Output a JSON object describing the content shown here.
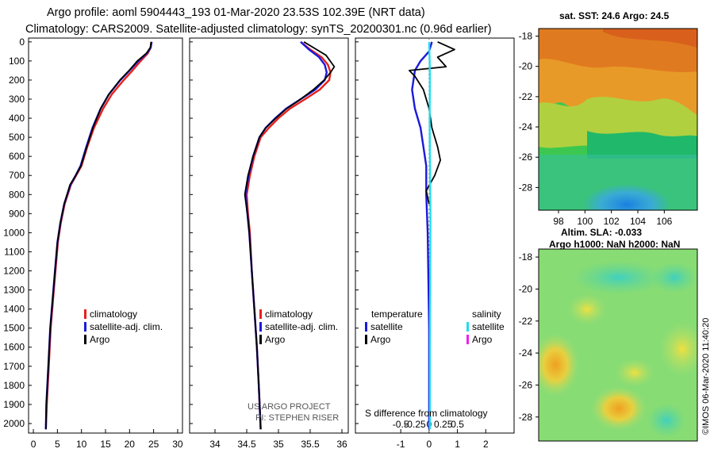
{
  "header": {
    "line1": "Argo profile: aoml 5904443_193 01-Mar-2020 23.53S 102.39E (NRT data)",
    "line2": "Climatology: CARS2009. Satellite-adjusted climatology: synTS_20200301.nc (0.96d earlier)"
  },
  "colors": {
    "climatology": "#e8201c",
    "satellite": "#1a1adc",
    "argo": "#000000",
    "sal_satellite": "#22ddee",
    "sal_argo": "#ee22ee"
  },
  "legend": {
    "climatology": "climatology",
    "satellite_adj": "satellite-adj. clim.",
    "argo": "Argo",
    "temperature": "temperature",
    "salinity": "salinity",
    "satellite": "satellite"
  },
  "credits": {
    "project": "US ARGO PROJECT",
    "pi": "PI: STEPHEN RISER",
    "stamp": "©IMOS 06-Mar-2020 11:40:20"
  },
  "maps": {
    "sst_title": "sat. SST: 24.6 Argo: 24.5",
    "sla_title1": "Altim. SLA: -0.033",
    "sla_title2": "Argo h1000: NaN h2000: NaN"
  },
  "chart_data": [
    {
      "type": "line",
      "name": "temperature-profile",
      "xlim": [
        -1,
        31
      ],
      "ylim": [
        2050,
        -20
      ],
      "x_ticks": [
        0,
        5,
        10,
        15,
        20,
        25,
        30
      ],
      "y_ticks": [
        0,
        100,
        200,
        300,
        400,
        500,
        600,
        700,
        800,
        900,
        1000,
        1100,
        1200,
        1300,
        1400,
        1500,
        1600,
        1700,
        1800,
        1900,
        2000
      ],
      "series": [
        {
          "name": "climatology",
          "color_key": "climatology",
          "points": [
            [
              24.5,
              0
            ],
            [
              24.4,
              30
            ],
            [
              23.8,
              60
            ],
            [
              22.3,
              100
            ],
            [
              20.6,
              150
            ],
            [
              18.8,
              200
            ],
            [
              16.3,
              275
            ],
            [
              14.5,
              350
            ],
            [
              12.6,
              450
            ],
            [
              11.2,
              550
            ],
            [
              10.0,
              650
            ],
            [
              8.9,
              700
            ],
            [
              7.8,
              750
            ],
            [
              6.5,
              850
            ],
            [
              5.7,
              950
            ],
            [
              5.1,
              1050
            ],
            [
              4.6,
              1200
            ],
            [
              4.1,
              1350
            ],
            [
              3.6,
              1500
            ],
            [
              3.2,
              1700
            ],
            [
              2.8,
              1900
            ],
            [
              2.6,
              2030
            ]
          ]
        },
        {
          "name": "satellite-adj. clim.",
          "color_key": "satellite",
          "points": [
            [
              24.6,
              0
            ],
            [
              24.4,
              30
            ],
            [
              23.6,
              60
            ],
            [
              21.8,
              100
            ],
            [
              20.0,
              150
            ],
            [
              18.1,
              200
            ],
            [
              15.7,
              275
            ],
            [
              14.0,
              350
            ],
            [
              12.3,
              450
            ],
            [
              11.0,
              550
            ],
            [
              9.8,
              650
            ],
            [
              8.8,
              700
            ],
            [
              7.7,
              750
            ],
            [
              6.4,
              850
            ],
            [
              5.6,
              950
            ],
            [
              5.0,
              1050
            ],
            [
              4.5,
              1200
            ],
            [
              4.0,
              1350
            ],
            [
              3.5,
              1500
            ],
            [
              3.1,
              1700
            ],
            [
              2.7,
              1900
            ],
            [
              2.6,
              2030
            ]
          ]
        },
        {
          "name": "Argo",
          "color_key": "argo",
          "points": [
            [
              24.5,
              0
            ],
            [
              24.3,
              30
            ],
            [
              23.5,
              60
            ],
            [
              21.6,
              100
            ],
            [
              19.9,
              150
            ],
            [
              18.0,
              200
            ],
            [
              15.7,
              275
            ],
            [
              14.0,
              350
            ],
            [
              12.4,
              450
            ],
            [
              11.1,
              550
            ],
            [
              9.9,
              650
            ],
            [
              8.8,
              700
            ],
            [
              7.6,
              750
            ],
            [
              6.4,
              850
            ],
            [
              5.6,
              950
            ],
            [
              5.0,
              1050
            ],
            [
              4.5,
              1200
            ],
            [
              4.0,
              1350
            ],
            [
              3.5,
              1500
            ],
            [
              3.1,
              1700
            ],
            [
              2.7,
              1900
            ],
            [
              2.6,
              2030
            ]
          ]
        }
      ]
    },
    {
      "type": "line",
      "name": "salinity-profile",
      "xlim": [
        33.6,
        36.1
      ],
      "ylim": [
        2050,
        -20
      ],
      "x_ticks": [
        34,
        34.5,
        35,
        35.5,
        36
      ],
      "series": [
        {
          "name": "climatology",
          "color_key": "climatology",
          "points": [
            [
              35.35,
              0
            ],
            [
              35.5,
              40
            ],
            [
              35.68,
              80
            ],
            [
              35.78,
              120
            ],
            [
              35.82,
              160
            ],
            [
              35.8,
              200
            ],
            [
              35.65,
              250
            ],
            [
              35.42,
              300
            ],
            [
              35.18,
              350
            ],
            [
              35.0,
              400
            ],
            [
              34.85,
              450
            ],
            [
              34.72,
              500
            ],
            [
              34.62,
              600
            ],
            [
              34.55,
              700
            ],
            [
              34.5,
              800
            ],
            [
              34.52,
              900
            ],
            [
              34.55,
              1000
            ],
            [
              34.58,
              1200
            ],
            [
              34.62,
              1400
            ],
            [
              34.66,
              1600
            ],
            [
              34.69,
              1800
            ],
            [
              34.72,
              2030
            ]
          ]
        },
        {
          "name": "satellite-adj. clim.",
          "color_key": "satellite",
          "points": [
            [
              35.35,
              0
            ],
            [
              35.48,
              40
            ],
            [
              35.64,
              80
            ],
            [
              35.73,
              120
            ],
            [
              35.76,
              160
            ],
            [
              35.73,
              200
            ],
            [
              35.58,
              250
            ],
            [
              35.35,
              300
            ],
            [
              35.12,
              350
            ],
            [
              34.95,
              400
            ],
            [
              34.8,
              450
            ],
            [
              34.7,
              500
            ],
            [
              34.6,
              600
            ],
            [
              34.53,
              700
            ],
            [
              34.48,
              800
            ],
            [
              34.51,
              900
            ],
            [
              34.54,
              1000
            ],
            [
              34.58,
              1200
            ],
            [
              34.62,
              1400
            ],
            [
              34.66,
              1600
            ],
            [
              34.69,
              1800
            ],
            [
              34.72,
              2030
            ]
          ]
        },
        {
          "name": "Argo",
          "color_key": "argo",
          "points": [
            [
              35.4,
              0
            ],
            [
              35.6,
              40
            ],
            [
              35.75,
              70
            ],
            [
              35.88,
              130
            ],
            [
              35.82,
              160
            ],
            [
              35.72,
              200
            ],
            [
              35.55,
              250
            ],
            [
              35.35,
              300
            ],
            [
              35.13,
              350
            ],
            [
              34.96,
              400
            ],
            [
              34.8,
              450
            ],
            [
              34.7,
              500
            ],
            [
              34.6,
              600
            ],
            [
              34.52,
              700
            ],
            [
              34.47,
              800
            ],
            [
              34.51,
              900
            ],
            [
              34.54,
              1000
            ],
            [
              34.58,
              1200
            ],
            [
              34.62,
              1400
            ],
            [
              34.66,
              1600
            ],
            [
              34.69,
              1800
            ],
            [
              34.72,
              2030
            ]
          ]
        }
      ]
    },
    {
      "type": "line",
      "name": "difference-from-climatology",
      "xlabel": "S difference from climatology",
      "temp_scale": [
        -1,
        0,
        1,
        2
      ],
      "sal_scale": [
        -0.5,
        -0.25,
        0,
        0.25,
        0.5
      ],
      "xlim": [
        -2.6,
        3.0
      ],
      "ylim": [
        2050,
        -20
      ],
      "series": [
        {
          "name": "temperature satellite",
          "color_key": "satellite",
          "points": [
            [
              0.1,
              0
            ],
            [
              0.0,
              50
            ],
            [
              -0.3,
              100
            ],
            [
              -0.5,
              150
            ],
            [
              -0.6,
              250
            ],
            [
              -0.5,
              350
            ],
            [
              -0.3,
              450
            ],
            [
              -0.2,
              550
            ],
            [
              -0.1,
              650
            ],
            [
              -0.1,
              800
            ],
            [
              -0.05,
              1000
            ],
            [
              0.0,
              1500
            ],
            [
              0.0,
              2030
            ]
          ]
        },
        {
          "name": "temperature Argo",
          "color_key": "argo",
          "points": [
            [
              0.3,
              0
            ],
            [
              0.9,
              40
            ],
            [
              0.3,
              80
            ],
            [
              0.6,
              130
            ],
            [
              -0.7,
              150
            ],
            [
              -0.5,
              180
            ],
            [
              -0.2,
              250
            ],
            [
              0.0,
              350
            ],
            [
              0.1,
              450
            ],
            [
              0.2,
              500
            ],
            [
              0.3,
              550
            ],
            [
              0.4,
              620
            ],
            [
              0.2,
              700
            ],
            [
              -0.1,
              780
            ],
            [
              0.0,
              850
            ]
          ]
        },
        {
          "name": "salinity satellite",
          "color_key": "sal_satellite",
          "points": [
            [
              0.0,
              0
            ],
            [
              0.02,
              100
            ],
            [
              0.03,
              200
            ],
            [
              0.02,
              400
            ],
            [
              0.03,
              600
            ],
            [
              0.04,
              800
            ],
            [
              0.05,
              900
            ],
            [
              0.04,
              1200
            ],
            [
              0.03,
              1600
            ],
            [
              0.03,
              2030
            ]
          ]
        }
      ]
    },
    {
      "type": "heatmap",
      "name": "sst-map",
      "title": "sat. SST: 24.6 Argo: 24.5",
      "xlim": [
        96.5,
        108.5
      ],
      "ylim": [
        -29.5,
        -17.5
      ],
      "x_ticks": [
        98,
        100,
        102,
        104,
        106
      ],
      "y_ticks": [
        -18,
        -20,
        -22,
        -24,
        -26,
        -28
      ]
    },
    {
      "type": "heatmap",
      "name": "sla-map",
      "title": "Altim. SLA: -0.033",
      "subtitle": "Argo h1000: NaN h2000: NaN",
      "ylim": [
        -29.5,
        -17.5
      ],
      "y_ticks": [
        -18,
        -20,
        -22,
        -24,
        -26,
        -28
      ]
    }
  ]
}
